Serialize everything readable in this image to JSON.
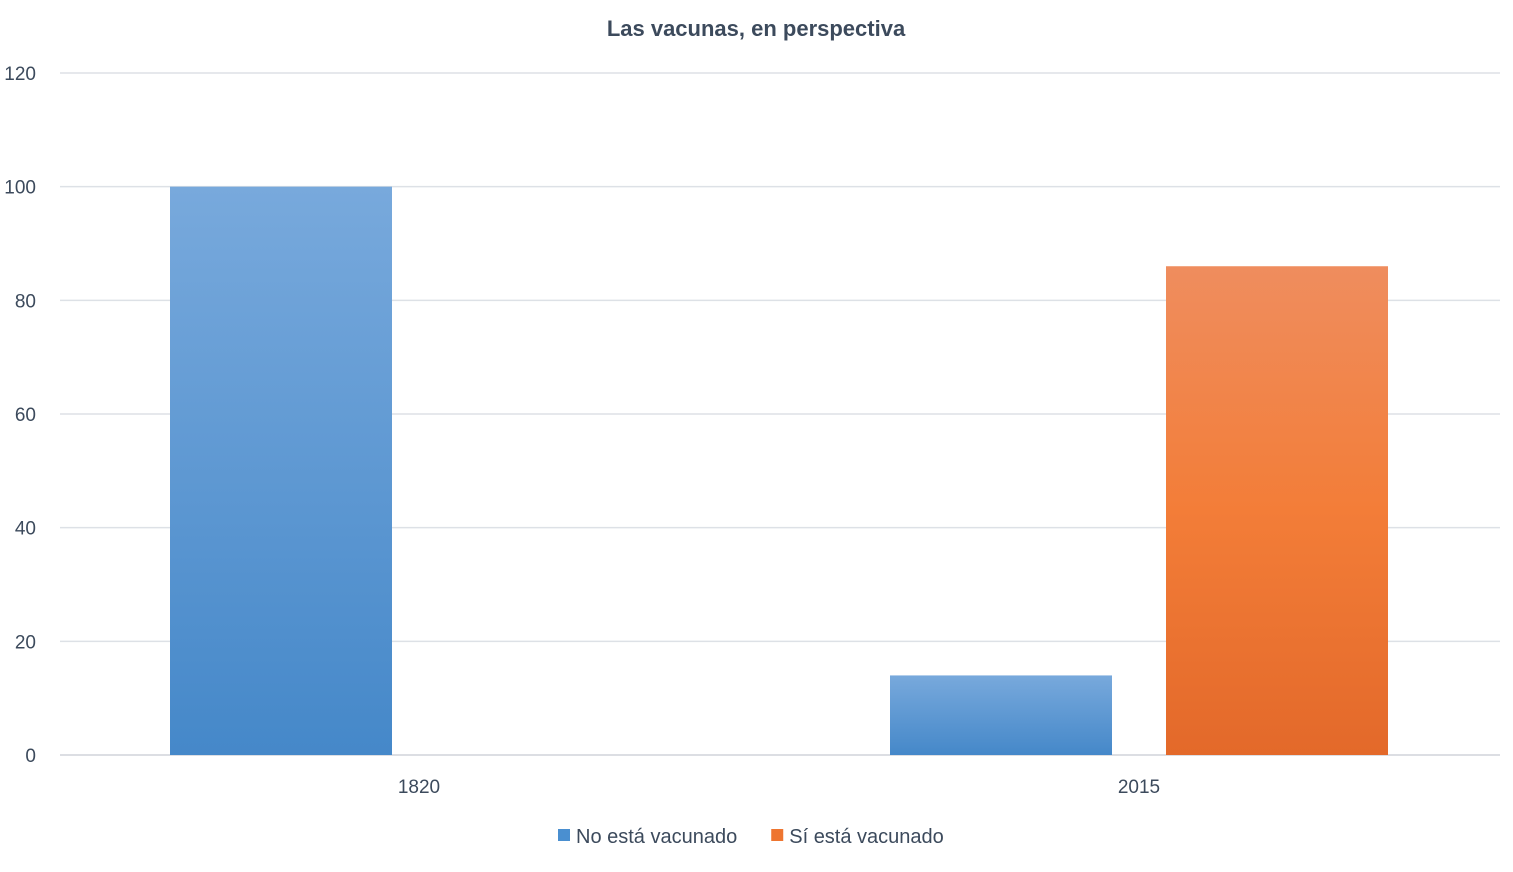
{
  "chart_data": {
    "type": "bar",
    "title": "Las vacunas, en perspectiva",
    "categories": [
      "1820",
      "2015"
    ],
    "series": [
      {
        "name": "No está vacunado",
        "values": [
          100,
          14
        ],
        "color": "#4a8fd0"
      },
      {
        "name": "Sí está vacunado",
        "values": [
          0,
          86
        ],
        "color": "#ee7530"
      }
    ],
    "xlabel": "",
    "ylabel": "",
    "ylim": [
      0,
      120
    ],
    "yticks": [
      0,
      20,
      40,
      60,
      80,
      100,
      120
    ],
    "grid": true,
    "legend": "bottom"
  }
}
